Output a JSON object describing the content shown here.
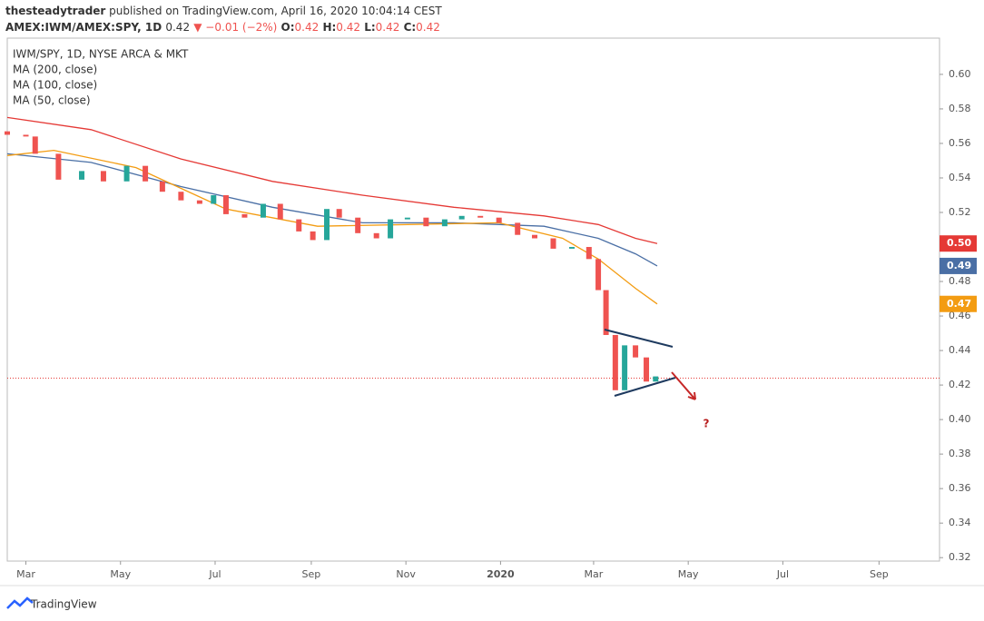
{
  "header": {
    "author": "thesteadytrader",
    "published": " published on TradingView.com, April 16, 2020 10:04:14 CEST",
    "symbol": "AMEX:IWM/AMEX:SPY, 1D",
    "price": "0.42",
    "change": "▼ −0.01 (−2%)",
    "ohlc": [
      {
        "key": "O:",
        "val": "0.42"
      },
      {
        "key": "H:",
        "val": "0.42"
      },
      {
        "key": "L:",
        "val": "0.42"
      },
      {
        "key": "C:",
        "val": "0.42"
      }
    ]
  },
  "legend_title": "IWM/SPY, 1D, NYSE ARCA & MKT",
  "footer": "TradingView",
  "chart_data": {
    "type": "candlestick",
    "x": [
      -12,
      0,
      6,
      21,
      36,
      50,
      65,
      77,
      88,
      100,
      112,
      121,
      129,
      141,
      153,
      164,
      176,
      185,
      194,
      202,
      214,
      226,
      235,
      246,
      258,
      270,
      281,
      293,
      305,
      317,
      328,
      340,
      352,
      363,
      369,
      374,
      380,
      386,
      393,
      400,
      406
    ],
    "open": [
      0.567,
      0.565,
      0.564,
      0.554,
      0.539,
      0.544,
      0.538,
      0.547,
      0.538,
      0.532,
      0.527,
      0.525,
      0.53,
      0.519,
      0.517,
      0.525,
      0.516,
      0.509,
      0.504,
      0.522,
      0.517,
      0.508,
      0.505,
      0.516,
      0.517,
      0.512,
      0.516,
      0.518,
      0.517,
      0.514,
      0.507,
      0.505,
      0.499,
      0.5,
      0.493,
      0.475,
      0.449,
      0.417,
      0.443,
      0.436,
      0.422
    ],
    "close": [
      0.565,
      0.564,
      0.554,
      0.539,
      0.544,
      0.538,
      0.547,
      0.538,
      0.532,
      0.527,
      0.525,
      0.53,
      0.519,
      0.517,
      0.525,
      0.516,
      0.509,
      0.504,
      0.522,
      0.517,
      0.508,
      0.505,
      0.516,
      0.517,
      0.512,
      0.516,
      0.518,
      0.517,
      0.514,
      0.507,
      0.505,
      0.499,
      0.5,
      0.493,
      0.475,
      0.449,
      0.417,
      0.443,
      0.436,
      0.422,
      0.425
    ],
    "up_color": "#26a69a",
    "down_color": "#ef5350",
    "series": [
      {
        "name": "MA (200, close)",
        "color": "#e53935",
        "x": [
          -12,
          42,
          100,
          159,
          217,
          276,
          334,
          369,
          393,
          407
        ],
        "values": [
          0.575,
          0.568,
          0.551,
          0.538,
          0.53,
          0.523,
          0.518,
          0.513,
          0.505,
          0.502
        ],
        "last_label": "0.50"
      },
      {
        "name": "MA (100, close)",
        "color": "#4a6fa5",
        "x": [
          -12,
          42,
          100,
          159,
          217,
          276,
          334,
          369,
          393,
          407
        ],
        "values": [
          0.554,
          0.549,
          0.535,
          0.523,
          0.514,
          0.514,
          0.512,
          0.505,
          0.496,
          0.489
        ],
        "last_label": "0.49"
      },
      {
        "name": "MA (50, close)",
        "color": "#f39c12",
        "x": [
          -12,
          18,
          71,
          129,
          188,
          246,
          305,
          346,
          369,
          393,
          407
        ],
        "values": [
          0.553,
          0.556,
          0.546,
          0.522,
          0.512,
          0.513,
          0.514,
          0.505,
          0.493,
          0.476,
          0.467
        ],
        "last_label": "0.47"
      }
    ],
    "current_price": 0.424,
    "annotation": "?",
    "xlim": [
      -12,
      589
    ],
    "xticks": [
      {
        "value": 0,
        "label": "Mar"
      },
      {
        "value": 61,
        "label": "May"
      },
      {
        "value": 122,
        "label": "Jul"
      },
      {
        "value": 184,
        "label": "Sep"
      },
      {
        "value": 245,
        "label": "Nov"
      },
      {
        "value": 306,
        "label": "2020"
      },
      {
        "value": 366,
        "label": "Mar"
      },
      {
        "value": 427,
        "label": "May"
      },
      {
        "value": 488,
        "label": "Jul"
      },
      {
        "value": 550,
        "label": "Sep"
      }
    ],
    "ylim": [
      0.318,
      0.621
    ],
    "yticks": [
      {
        "value": 0.32,
        "label": "0.32"
      },
      {
        "value": 0.34,
        "label": "0.34"
      },
      {
        "value": 0.36,
        "label": "0.36"
      },
      {
        "value": 0.38,
        "label": "0.38"
      },
      {
        "value": 0.4,
        "label": "0.40"
      },
      {
        "value": 0.42,
        "label": "0.42"
      },
      {
        "value": 0.44,
        "label": "0.44"
      },
      {
        "value": 0.46,
        "label": "0.46"
      },
      {
        "value": 0.48,
        "label": "0.48"
      },
      {
        "value": 0.5,
        "label": "0.50"
      },
      {
        "value": 0.52,
        "label": "0.52"
      },
      {
        "value": 0.54,
        "label": "0.54"
      },
      {
        "value": 0.56,
        "label": "0.56"
      },
      {
        "value": 0.58,
        "label": "0.58"
      },
      {
        "value": 0.6,
        "label": "0.60"
      }
    ]
  }
}
